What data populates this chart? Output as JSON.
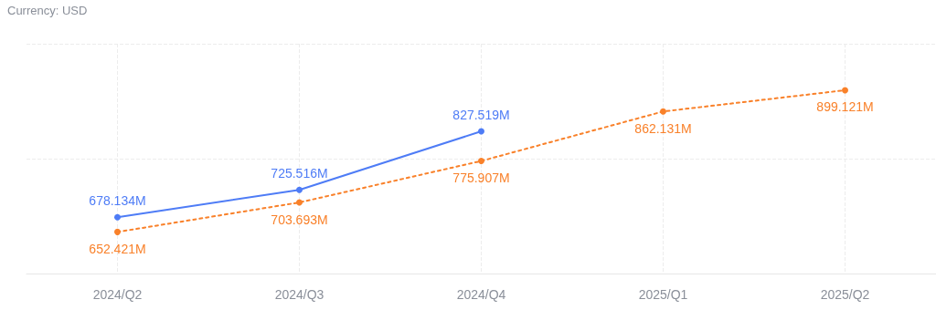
{
  "chart_data": {
    "type": "line",
    "categories": [
      "2024/Q2",
      "2024/Q3",
      "2024/Q4",
      "2025/Q1",
      "2025/Q2"
    ],
    "series": [
      {
        "color": "#4e7cf6",
        "line_style": "solid",
        "values": [
          678.134,
          725.516,
          827.519,
          null,
          null
        ],
        "value_labels": [
          "678.134M",
          "725.516M",
          "827.519M",
          null,
          null
        ]
      },
      {
        "color": "#f9812a",
        "line_style": "dotted",
        "values": [
          652.421,
          703.693,
          775.907,
          862.131,
          899.121
        ],
        "value_labels": [
          "652.421M",
          "703.693M",
          "775.907M",
          "862.131M",
          "899.121M"
        ]
      }
    ],
    "ylim": [
      580,
      980
    ],
    "yticks": [
      {
        "value": 580,
        "label": null
      },
      {
        "value": 780,
        "label": null
      },
      {
        "value": 980,
        "label": null
      }
    ],
    "tick_labels": "x",
    "grid": true,
    "marker": "circle",
    "annotations": [
      "Currency: USD"
    ]
  }
}
